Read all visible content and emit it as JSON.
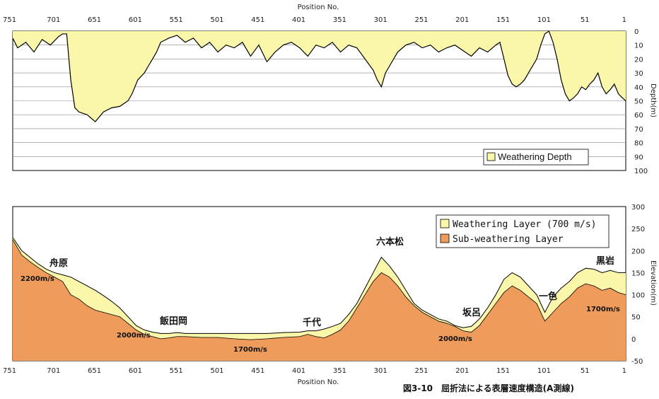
{
  "chart_data": [
    {
      "type": "area",
      "x_axis_title": "Position No.",
      "x_ticks": [
        751,
        701,
        651,
        601,
        551,
        501,
        451,
        401,
        351,
        301,
        251,
        201,
        151,
        101,
        51,
        1
      ],
      "xlim": [
        751,
        1
      ],
      "y_axis_title": "Depth(m)",
      "y_ticks": [
        0,
        10,
        20,
        30,
        40,
        50,
        60,
        70,
        80,
        90,
        100
      ],
      "ylim": [
        100,
        0
      ],
      "legend": [
        "Weathering Depth"
      ],
      "legend_position": "bottom-right",
      "grid": true,
      "series": [
        {
          "name": "Weathering Depth",
          "color": "#fbf7aa",
          "x": [
            751,
            745,
            735,
            725,
            715,
            705,
            695,
            690,
            685,
            680,
            675,
            670,
            660,
            650,
            640,
            630,
            620,
            610,
            605,
            598,
            590,
            585,
            580,
            575,
            570,
            560,
            550,
            540,
            530,
            520,
            510,
            500,
            490,
            480,
            470,
            460,
            450,
            440,
            430,
            420,
            410,
            400,
            390,
            380,
            370,
            360,
            350,
            340,
            330,
            320,
            310,
            305,
            300,
            295,
            290,
            280,
            270,
            260,
            250,
            240,
            230,
            220,
            210,
            200,
            190,
            180,
            170,
            160,
            155,
            150,
            145,
            140,
            135,
            130,
            125,
            120,
            115,
            110,
            105,
            100,
            95,
            90,
            85,
            80,
            75,
            70,
            65,
            60,
            55,
            50,
            45,
            40,
            35,
            30,
            25,
            20,
            15,
            10,
            5,
            1
          ],
          "values": [
            5,
            12,
            8,
            15,
            6,
            10,
            4,
            2,
            2,
            35,
            55,
            58,
            60,
            65,
            58,
            55,
            54,
            50,
            45,
            35,
            30,
            25,
            20,
            15,
            8,
            5,
            3,
            8,
            5,
            12,
            8,
            15,
            10,
            12,
            8,
            18,
            10,
            22,
            15,
            10,
            8,
            12,
            18,
            10,
            12,
            8,
            15,
            10,
            12,
            20,
            28,
            35,
            40,
            30,
            25,
            15,
            10,
            8,
            12,
            10,
            15,
            12,
            10,
            14,
            18,
            12,
            15,
            10,
            8,
            20,
            32,
            38,
            40,
            38,
            35,
            30,
            25,
            20,
            10,
            2,
            0,
            8,
            20,
            35,
            45,
            50,
            48,
            45,
            40,
            42,
            38,
            35,
            30,
            40,
            45,
            42,
            38,
            45,
            48,
            50
          ]
        }
      ]
    },
    {
      "type": "area",
      "x_axis_title": "Position No.",
      "x_ticks": [
        751,
        701,
        651,
        601,
        551,
        501,
        451,
        401,
        351,
        301,
        251,
        201,
        151,
        101,
        51,
        1
      ],
      "xlim": [
        751,
        1
      ],
      "y_axis_title": "Elevation(m)",
      "y_ticks": [
        300,
        250,
        200,
        150,
        100,
        50,
        0,
        -50
      ],
      "ylim": [
        -50,
        300
      ],
      "legend": [
        "Weathering Layer (700 m/s)",
        "Sub-weathering Layer"
      ],
      "legend_position": "top-right",
      "grid": false,
      "series": [
        {
          "name": "Weathering Layer (700 m/s)",
          "color": "#fbf7aa",
          "x": [
            751,
            740,
            730,
            720,
            710,
            700,
            690,
            680,
            670,
            660,
            650,
            640,
            630,
            620,
            610,
            600,
            590,
            580,
            570,
            560,
            550,
            540,
            520,
            500,
            480,
            460,
            440,
            420,
            400,
            390,
            380,
            370,
            360,
            350,
            340,
            330,
            320,
            310,
            300,
            290,
            280,
            270,
            260,
            250,
            240,
            230,
            220,
            210,
            200,
            190,
            180,
            170,
            160,
            150,
            140,
            130,
            120,
            110,
            100,
            90,
            80,
            70,
            60,
            50,
            40,
            30,
            20,
            10,
            1
          ],
          "values": [
            230,
            200,
            185,
            170,
            158,
            150,
            145,
            140,
            130,
            120,
            110,
            98,
            85,
            70,
            50,
            30,
            20,
            15,
            12,
            12,
            14,
            12,
            12,
            12,
            12,
            12,
            12,
            14,
            15,
            18,
            18,
            22,
            28,
            35,
            55,
            80,
            115,
            150,
            185,
            165,
            140,
            110,
            80,
            65,
            55,
            45,
            40,
            30,
            25,
            28,
            45,
            70,
            100,
            135,
            150,
            140,
            120,
            100,
            60,
            95,
            115,
            130,
            150,
            160,
            158,
            150,
            155,
            150,
            150
          ]
        },
        {
          "name": "Sub-weathering Layer",
          "color": "#ee9b5c",
          "x": [
            751,
            740,
            730,
            720,
            710,
            700,
            690,
            680,
            670,
            660,
            650,
            640,
            630,
            620,
            610,
            600,
            590,
            580,
            570,
            560,
            550,
            540,
            520,
            500,
            480,
            460,
            440,
            420,
            400,
            390,
            380,
            370,
            360,
            350,
            340,
            330,
            320,
            310,
            300,
            290,
            280,
            270,
            260,
            250,
            240,
            230,
            220,
            210,
            200,
            190,
            180,
            170,
            160,
            150,
            140,
            130,
            120,
            110,
            100,
            90,
            80,
            70,
            60,
            50,
            40,
            30,
            20,
            10,
            1
          ],
          "values": [
            225,
            190,
            175,
            162,
            150,
            140,
            130,
            100,
            90,
            75,
            65,
            60,
            55,
            50,
            35,
            20,
            10,
            5,
            0,
            2,
            5,
            5,
            3,
            3,
            0,
            -2,
            0,
            3,
            5,
            10,
            5,
            2,
            10,
            20,
            40,
            70,
            100,
            130,
            150,
            140,
            120,
            95,
            75,
            60,
            50,
            40,
            35,
            28,
            18,
            15,
            30,
            55,
            80,
            105,
            120,
            110,
            95,
            80,
            40,
            60,
            80,
            95,
            115,
            125,
            120,
            110,
            115,
            105,
            100
          ]
        }
      ],
      "annotations": {
        "places": [
          "舟原",
          "飯田岡",
          "千代",
          "六本松",
          "坂呂",
          "一色",
          "黒岩"
        ],
        "velocities": [
          "2200m/s",
          "2000m/s",
          "1700m/s",
          "2000m/s",
          "1700m/s"
        ]
      }
    }
  ],
  "caption": "図3-10　屈折法による表層速度構造(A測線)"
}
